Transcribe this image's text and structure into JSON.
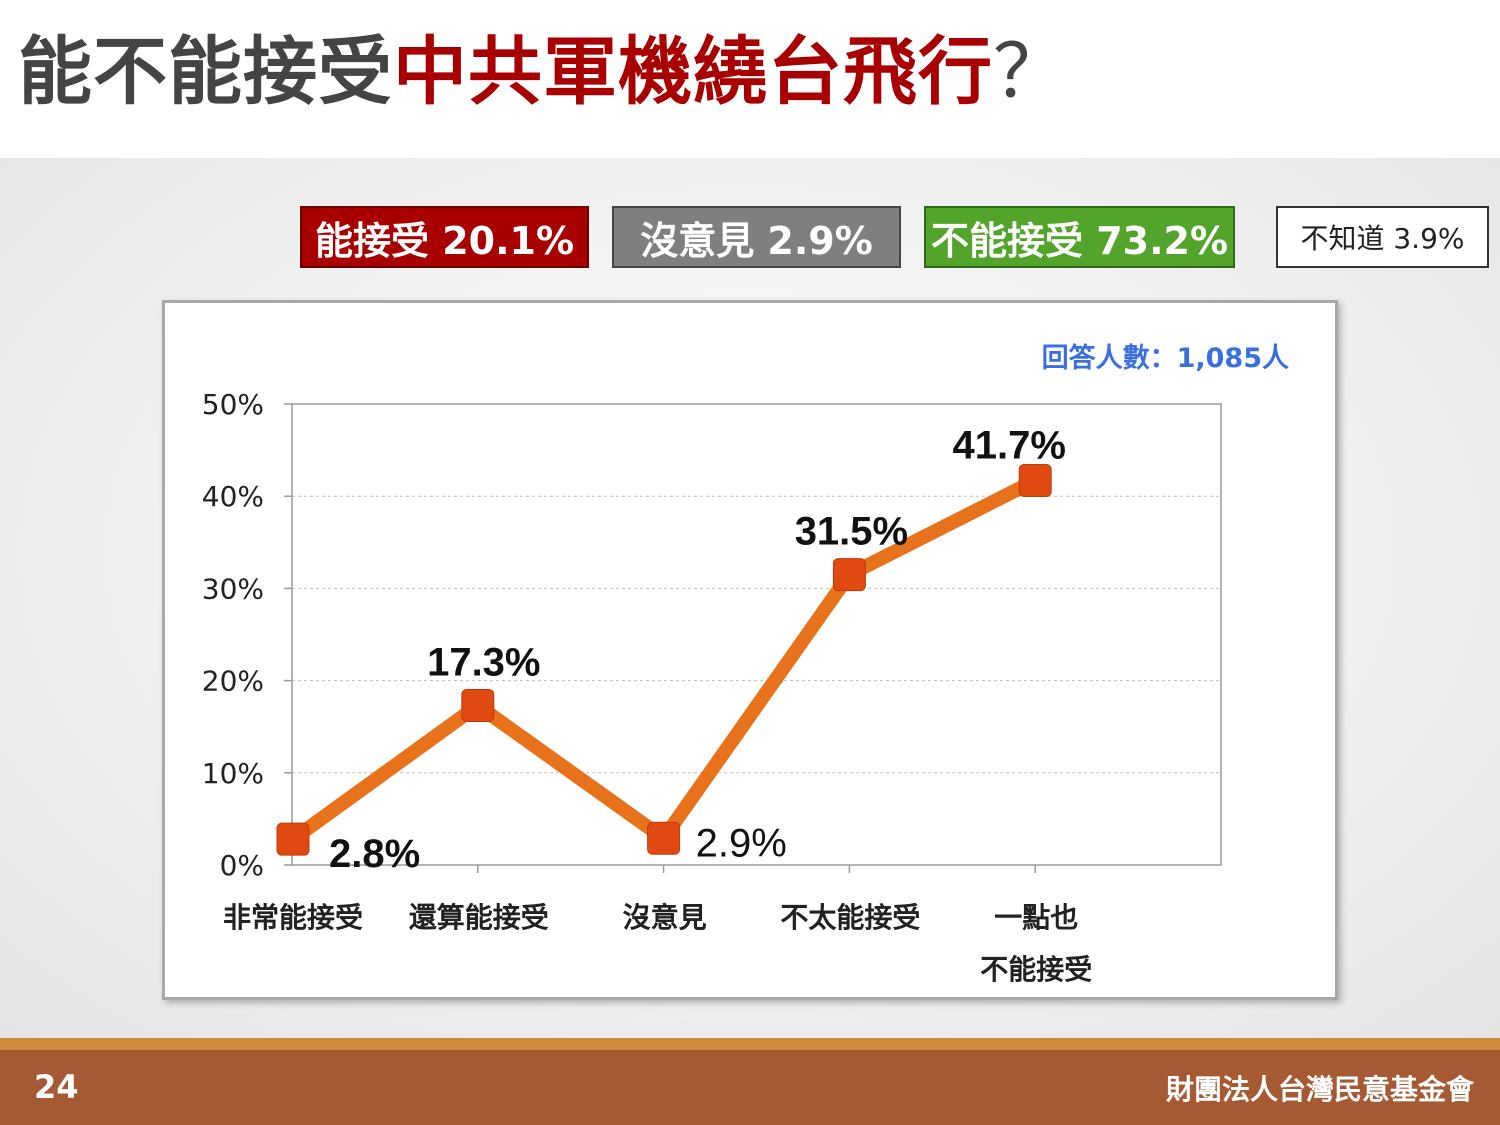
{
  "title": {
    "part1": "能不能接受",
    "part2": "中共軍機繞台飛行",
    "part3": "？"
  },
  "summary": {
    "accept": "能接受 20.1%",
    "no_opinion": "沒意見 2.9%",
    "reject": "不能接受 73.2%",
    "dont_know": "不知道 3.9%"
  },
  "colors": {
    "accept": "#a80000",
    "no_opinion": "#7f7f7f",
    "reject": "#52a42a",
    "line": "#e8721c",
    "marker": "#e04a10",
    "respondents": "#3a6fe0",
    "footer": "#a55a34"
  },
  "footer": {
    "page": "24",
    "org": "財團法人台灣民意基金會"
  },
  "chart_data": {
    "type": "line",
    "respondents": "回答人數：1,085人",
    "categories": [
      [
        "非常能接受"
      ],
      [
        "還算能接受"
      ],
      [
        "沒意見"
      ],
      [
        "不太能接受"
      ],
      [
        "一點也",
        "不能接受"
      ]
    ],
    "values": [
      2.8,
      17.3,
      2.9,
      31.5,
      41.7
    ],
    "value_labels": [
      "2.8%",
      "17.3%",
      "2.9%",
      "31.5%",
      "41.7%"
    ],
    "y_ticks": [
      "0%",
      "10%",
      "20%",
      "30%",
      "40%",
      "50%"
    ],
    "ylim": [
      0,
      50
    ],
    "grid": true
  }
}
